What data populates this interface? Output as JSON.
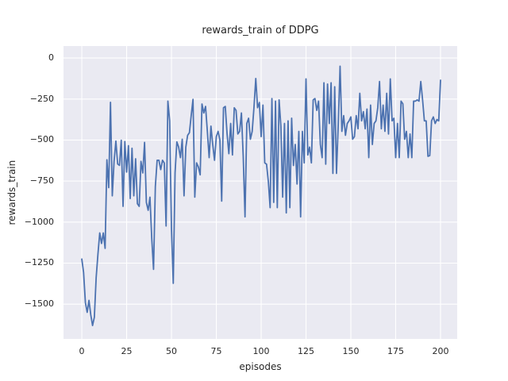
{
  "chart_data": {
    "type": "line",
    "title": "rewards_train of DDPG",
    "xlabel": "episodes",
    "ylabel": "rewards_train",
    "grid": true,
    "legend": false,
    "style": "seaborn-darkgrid",
    "plot_background": "#eaeaf2",
    "figure_background": "#ffffff",
    "gridline_color": "#ffffff",
    "line_color": "#4c72b0",
    "text_color": "#262626",
    "xlim": [
      -10.2,
      209.3
    ],
    "ylim": [
      -1712,
      73
    ],
    "x_ticks": [
      0,
      25,
      50,
      75,
      100,
      125,
      150,
      175,
      200
    ],
    "x_tick_labels": [
      "0",
      "25",
      "50",
      "75",
      "100",
      "125",
      "150",
      "175",
      "200"
    ],
    "y_ticks": [
      0,
      -250,
      -500,
      -750,
      -1000,
      -1250,
      -1500
    ],
    "y_tick_labels": [
      "0",
      "−250",
      "−500",
      "−750",
      "−1000",
      "−1250",
      "−1500"
    ],
    "x_min": 0,
    "x_step": 1,
    "values": [
      -1225,
      -1307,
      -1490,
      -1550,
      -1477,
      -1565,
      -1630,
      -1580,
      -1340,
      -1195,
      -1066,
      -1130,
      -1066,
      -1160,
      -620,
      -790,
      -270,
      -840,
      -630,
      -506,
      -646,
      -654,
      -501,
      -904,
      -509,
      -695,
      -534,
      -856,
      -550,
      -840,
      -614,
      -888,
      -904,
      -630,
      -700,
      -514,
      -880,
      -928,
      -848,
      -1100,
      -1288,
      -784,
      -623,
      -623,
      -680,
      -623,
      -640,
      -1024,
      -263,
      -383,
      -1040,
      -1373,
      -700,
      -511,
      -543,
      -607,
      -495,
      -840,
      -543,
      -471,
      -455,
      -350,
      -252,
      -848,
      -639,
      -664,
      -712,
      -280,
      -335,
      -295,
      -447,
      -607,
      -415,
      -527,
      -623,
      -479,
      -447,
      -500,
      -872,
      -303,
      -295,
      -463,
      -583,
      -399,
      -591,
      -303,
      -319,
      -463,
      -447,
      -335,
      -600,
      -968,
      -399,
      -367,
      -495,
      -447,
      -300,
      -125,
      -303,
      -271,
      -479,
      -287,
      -639,
      -647,
      -752,
      -912,
      -247,
      -880,
      -263,
      -912,
      -255,
      -415,
      -848,
      -399,
      -944,
      -383,
      -912,
      -367,
      -655,
      -527,
      -768,
      -447,
      -968,
      -447,
      -639,
      -127,
      -591,
      -543,
      -639,
      -255,
      -247,
      -319,
      -263,
      -527,
      -607,
      -151,
      -647,
      -159,
      -399,
      -151,
      -703,
      -175,
      -703,
      -400,
      -50,
      -447,
      -351,
      -471,
      -399,
      -383,
      -359,
      -495,
      -479,
      -351,
      -431,
      -215,
      -383,
      -327,
      -431,
      -311,
      -607,
      -287,
      -527,
      -399,
      -383,
      -303,
      -143,
      -431,
      -287,
      -447,
      -215,
      -463,
      -127,
      -383,
      -367,
      -607,
      -399,
      -607,
      -263,
      -279,
      -495,
      -447,
      -607,
      -463,
      -607,
      -263,
      -263,
      -255,
      -263,
      -143,
      -255,
      -383,
      -383,
      -599,
      -595,
      -383,
      -359,
      -399,
      -375,
      -383,
      -135
    ]
  }
}
